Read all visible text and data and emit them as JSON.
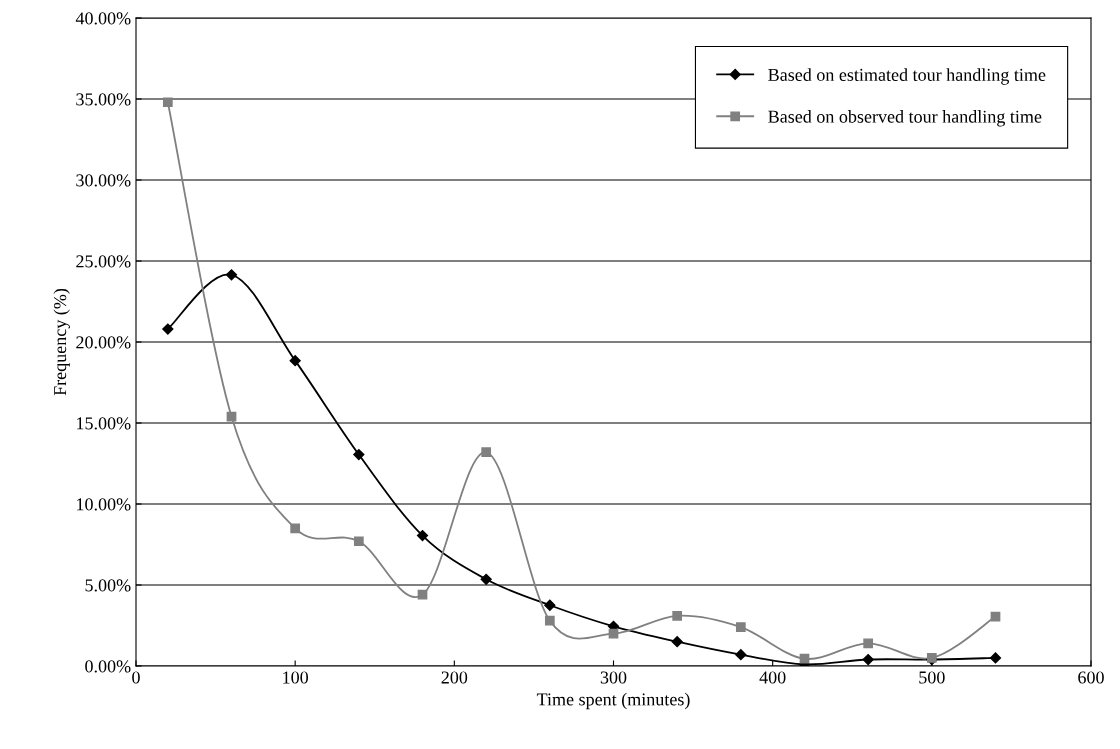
{
  "chart_data": {
    "type": "line",
    "xlabel": "Time spent (minutes)",
    "ylabel": "Frequency (%)",
    "x": [
      20,
      60,
      100,
      140,
      180,
      220,
      260,
      300,
      340,
      380,
      420,
      460,
      500,
      540
    ],
    "series": [
      {
        "name": "Based on estimated tour handling time",
        "color": "#000000",
        "marker": "diamond",
        "values": [
          20.8,
          24.15,
          18.85,
          13.05,
          8.05,
          5.35,
          3.75,
          2.45,
          1.5,
          0.7,
          0.1,
          0.4,
          0.4,
          0.5
        ]
      },
      {
        "name": "Based on observed tour handling time",
        "color": "#808080",
        "marker": "square",
        "values": [
          34.8,
          15.4,
          8.5,
          7.7,
          4.4,
          13.2,
          2.8,
          2.0,
          3.1,
          2.4,
          0.45,
          1.4,
          0.5,
          3.05
        ]
      }
    ],
    "xlim": [
      0,
      600
    ],
    "xticks": [
      0,
      100,
      200,
      300,
      400,
      500,
      600
    ],
    "ylim": [
      0,
      40
    ],
    "yticks": [
      {
        "value": 0,
        "label": "0.00%"
      },
      {
        "value": 5,
        "label": "5.00%"
      },
      {
        "value": 10,
        "label": "10.00%"
      },
      {
        "value": 15,
        "label": "15.00%"
      },
      {
        "value": 20,
        "label": "20.00%"
      },
      {
        "value": 25,
        "label": "25.00%"
      },
      {
        "value": 30,
        "label": "30.00%"
      },
      {
        "value": 35,
        "label": "35.00%"
      },
      {
        "value": 40,
        "label": "40.00%"
      }
    ],
    "grid": "y",
    "legend": "top right",
    "line_style": "solid"
  }
}
